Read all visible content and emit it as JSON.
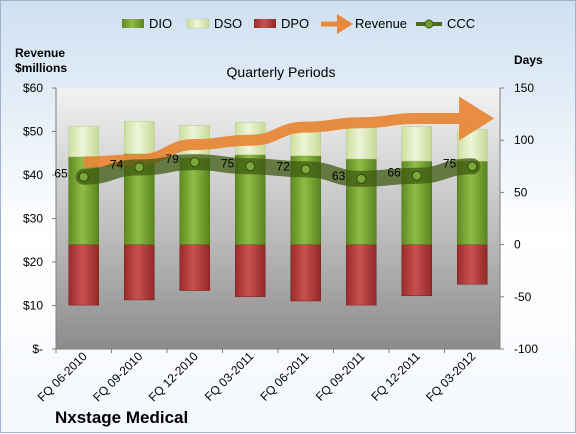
{
  "chart_data": {
    "type": "bar",
    "title": "Quarterly Periods",
    "left_axis_title": [
      "Revenue",
      "$millions"
    ],
    "right_axis_title": "Days",
    "company": "Nxstage Medical",
    "categories": [
      "FQ 06-2010",
      "FQ 09-2010",
      "FQ 12-2010",
      "FQ 03-2011",
      "FQ 06-2011",
      "FQ 09-2011",
      "FQ 12-2011",
      "FQ 03-2012"
    ],
    "left_ylim": [
      0,
      60
    ],
    "left_ticks": [
      {
        "value": 60,
        "label": "$60"
      },
      {
        "value": 50,
        "label": "$50"
      },
      {
        "value": 40,
        "label": "$40"
      },
      {
        "value": 30,
        "label": "$30"
      },
      {
        "value": 20,
        "label": "$20"
      },
      {
        "value": 10,
        "label": "$10"
      },
      {
        "value": 0,
        "label": "$-"
      }
    ],
    "right_ylim": [
      -100,
      150
    ],
    "right_ticks": [
      {
        "value": 150,
        "label": "150"
      },
      {
        "value": 100,
        "label": "100"
      },
      {
        "value": 50,
        "label": "50"
      },
      {
        "value": 0,
        "label": "0"
      },
      {
        "value": -50,
        "label": "-50"
      },
      {
        "value": -100,
        "label": "-100"
      }
    ],
    "series": [
      {
        "name": "DIO",
        "axis": "right",
        "color": "#6f9b2c",
        "values": [
          84,
          87,
          83,
          86,
          85,
          82,
          80,
          80
        ]
      },
      {
        "name": "DSO",
        "axis": "right",
        "color": "#dce9b8",
        "values": [
          29,
          31,
          31,
          31,
          30,
          33,
          33,
          30
        ]
      },
      {
        "name": "DPO",
        "axis": "right",
        "color": "#b03838",
        "values": [
          -58,
          -53,
          -44,
          -50,
          -54,
          -58,
          -49,
          -38
        ]
      },
      {
        "name": "Revenue",
        "axis": "left",
        "color": "#e8893a",
        "values": [
          43,
          43.5,
          47,
          48,
          51,
          52,
          53,
          53
        ]
      },
      {
        "name": "CCC",
        "axis": "right",
        "color": "#4f6b1a",
        "values": [
          65,
          74,
          79,
          75,
          72,
          63,
          66,
          75
        ]
      }
    ],
    "ccc_labels": [
      "65",
      "74",
      "79",
      "75",
      "72",
      "63",
      "66",
      "75"
    ],
    "legend": [
      "DIO",
      "DSO",
      "DPO",
      "Revenue",
      "CCC"
    ],
    "legend_position": "top",
    "grid": false
  }
}
